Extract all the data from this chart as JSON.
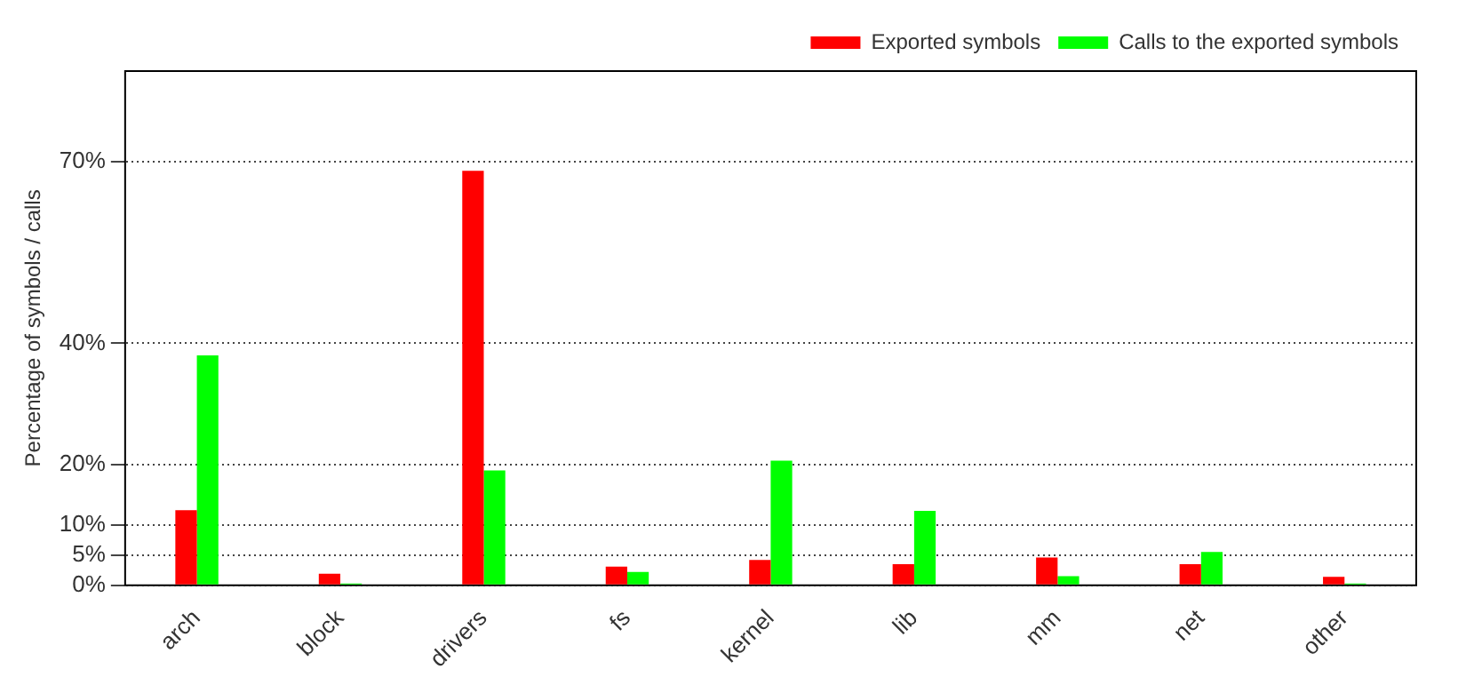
{
  "chart_data": {
    "type": "bar",
    "ylabel": "Percentage of symbols / calls",
    "categories": [
      "arch",
      "block",
      "drivers",
      "fs",
      "kernel",
      "lib",
      "mm",
      "net",
      "other"
    ],
    "series": [
      {
        "name": "Exported symbols",
        "color": "#ff0000",
        "values": [
          12.4,
          1.9,
          68.5,
          3.1,
          4.2,
          3.5,
          4.6,
          3.5,
          1.4
        ]
      },
      {
        "name": "Calls to the exported symbols",
        "color": "#00ff00",
        "values": [
          38,
          0.3,
          19,
          2.2,
          20.6,
          12.3,
          1.5,
          5.5,
          0.3
        ]
      }
    ],
    "ylim": [
      0,
      85
    ],
    "yticks": [
      {
        "value": 0,
        "label": "0%"
      },
      {
        "value": 5,
        "label": "5%"
      },
      {
        "value": 10,
        "label": "10%"
      },
      {
        "value": 20,
        "label": "20%"
      },
      {
        "value": 40,
        "label": "40%"
      },
      {
        "value": 70,
        "label": "70%"
      }
    ],
    "grid": "y",
    "legend": "top right"
  }
}
